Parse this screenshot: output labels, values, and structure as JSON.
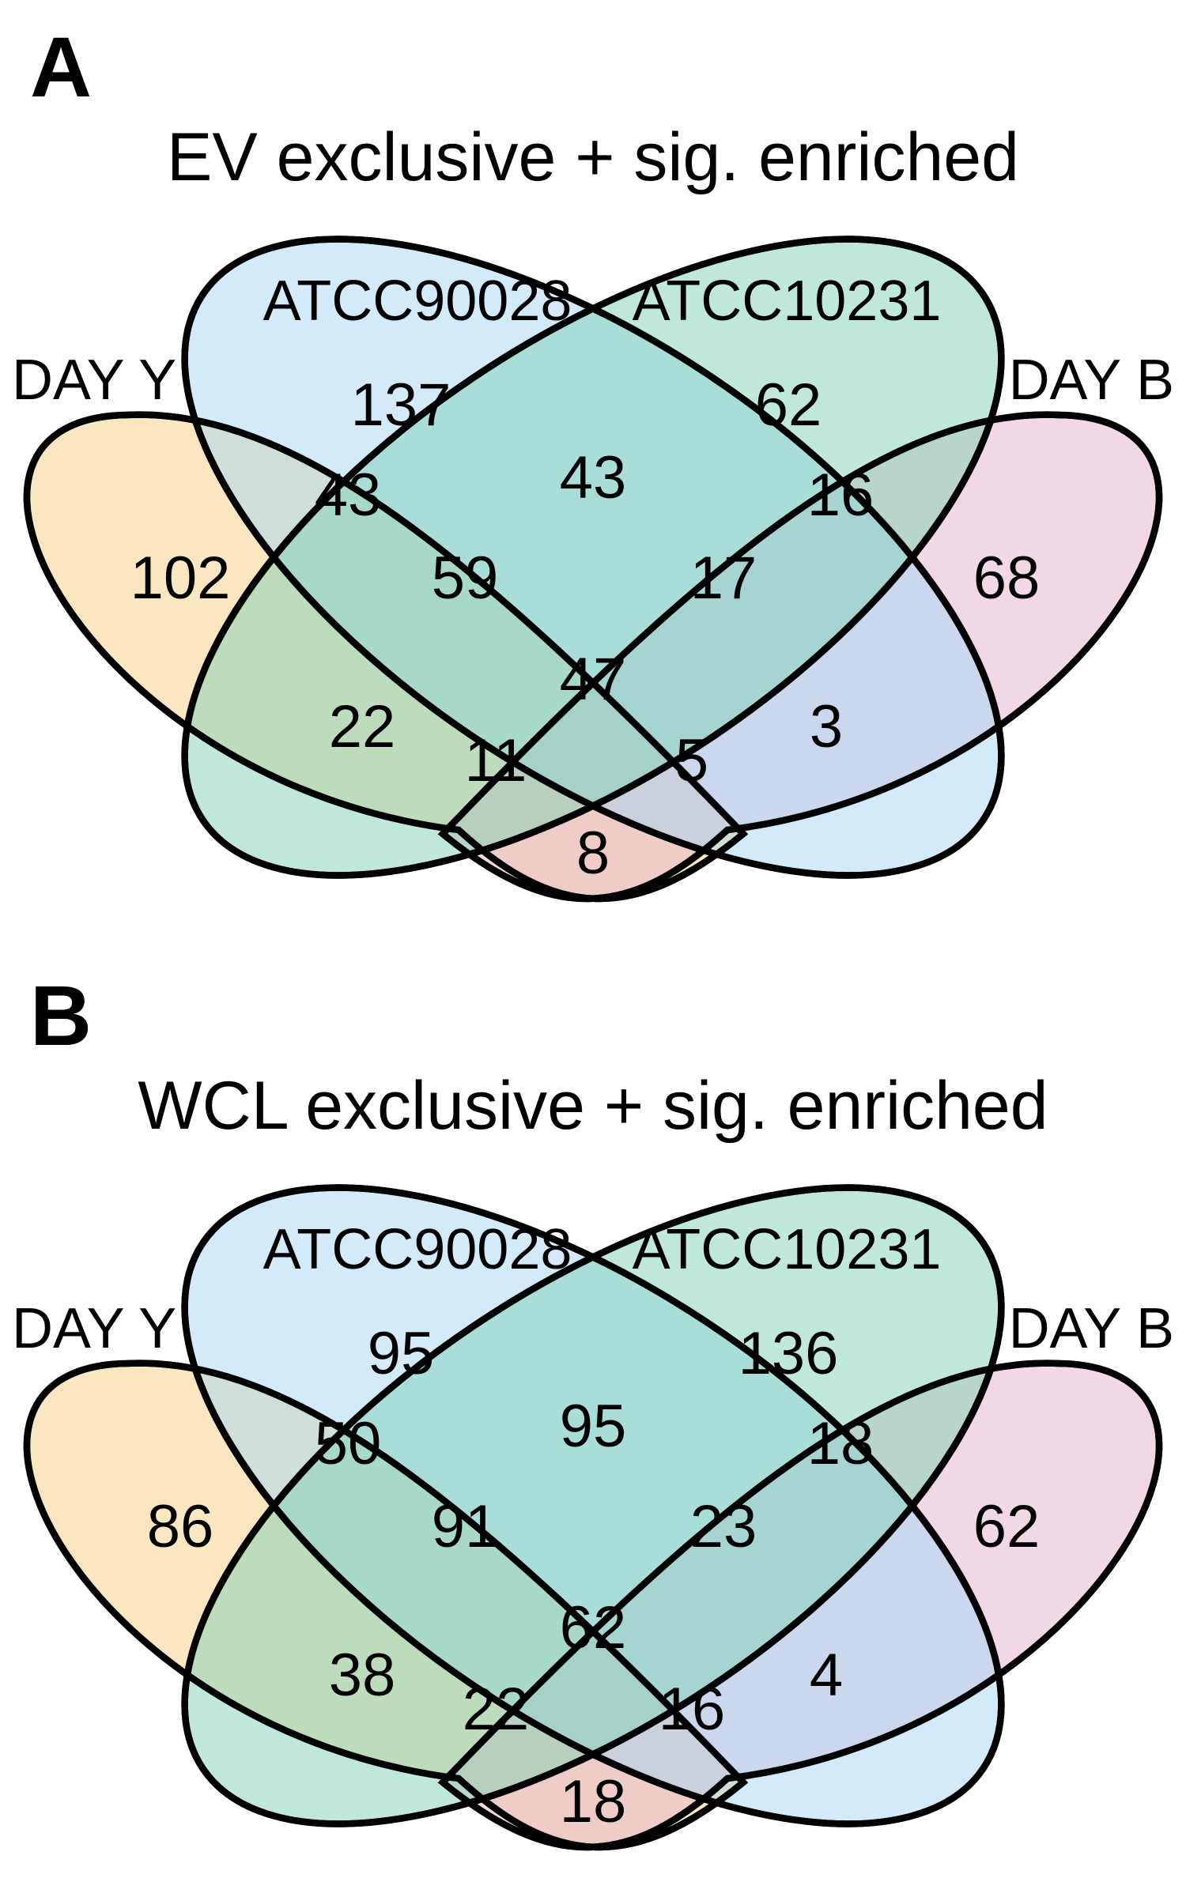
{
  "colors": {
    "day_y": "#f5cf83",
    "atcc90028": "#a5d5f5",
    "atcc10231": "#7fd2b6",
    "day_b": "#e3b2ca"
  },
  "set_labels": {
    "day_y": "DAY Y",
    "atcc90028": "ATCC90028",
    "atcc10231": "ATCC10231",
    "day_b": "DAY B"
  },
  "panels": [
    {
      "letter": "A",
      "title": "EV exclusive + sig. enriched",
      "counts": {
        "atcc90028_only": "137",
        "atcc10231_only": "62",
        "dayy_atcc90028": "43",
        "atcc90028_atcc10231": "43",
        "atcc10231_dayb": "16",
        "dayy_only": "102",
        "dayy_atcc90028_atcc10231": "59",
        "atcc90028_atcc10231_dayb": "17",
        "dayb_only": "68",
        "dayy_atcc10231": "22",
        "all_four": "47",
        "atcc90028_dayb": "3",
        "dayy_atcc10231_dayb": "11",
        "dayy_atcc90028_dayb": "5",
        "dayy_dayb": "8"
      }
    },
    {
      "letter": "B",
      "title": "WCL exclusive + sig. enriched",
      "counts": {
        "atcc90028_only": "95",
        "atcc10231_only": "136",
        "dayy_atcc90028": "50",
        "atcc90028_atcc10231": "95",
        "atcc10231_dayb": "18",
        "dayy_only": "86",
        "dayy_atcc90028_atcc10231": "91",
        "atcc90028_atcc10231_dayb": "23",
        "dayb_only": "62",
        "dayy_atcc10231": "38",
        "all_four": "62",
        "atcc90028_dayb": "4",
        "dayy_atcc10231_dayb": "22",
        "dayy_atcc90028_dayb": "16",
        "dayy_dayb": "18"
      }
    }
  ]
}
